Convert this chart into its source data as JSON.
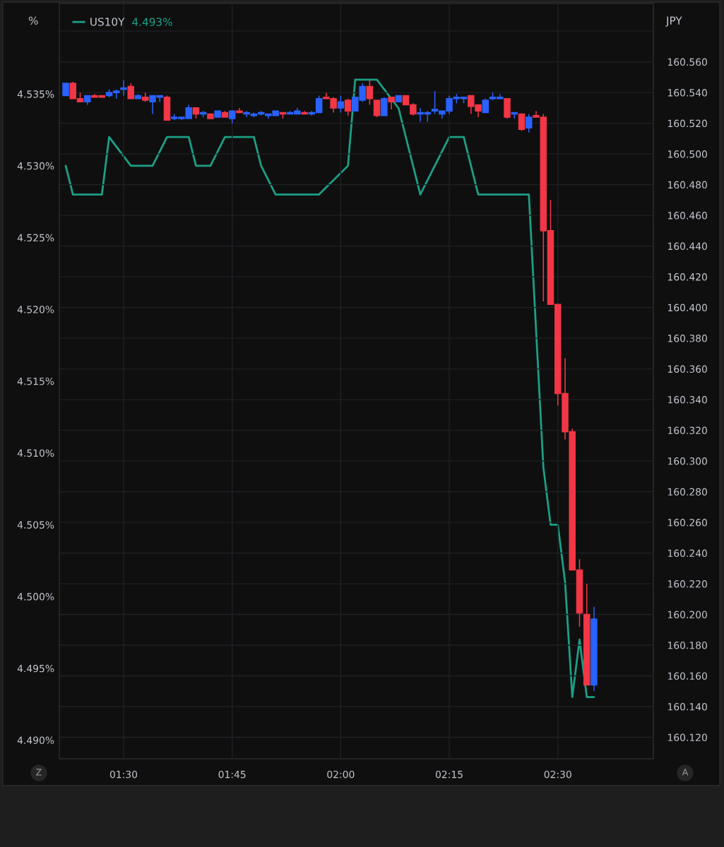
{
  "chart_data": {
    "type": "candlestick",
    "ylabel": "JPY",
    "y2label": "%",
    "annotations": [
      "4.493%",
      "Z",
      "A"
    ],
    "xlim": [
      1.352,
      2.72
    ],
    "xticks": [
      {
        "value": 1.5,
        "label": "01:30"
      },
      {
        "value": 1.75,
        "label": "01:45"
      },
      {
        "value": 2.0,
        "label": "02:00"
      },
      {
        "value": 2.25,
        "label": "02:15"
      },
      {
        "value": 2.5,
        "label": "02:30"
      }
    ],
    "ylim": [
      160.106,
      160.598
    ],
    "yticks": [
      {
        "value": 160.12,
        "label": "160.120"
      },
      {
        "value": 160.14,
        "label": "160.140"
      },
      {
        "value": 160.16,
        "label": "160.160"
      },
      {
        "value": 160.18,
        "label": "160.180"
      },
      {
        "value": 160.2,
        "label": "160.200"
      },
      {
        "value": 160.22,
        "label": "160.220"
      },
      {
        "value": 160.24,
        "label": "160.240"
      },
      {
        "value": 160.26,
        "label": "160.260"
      },
      {
        "value": 160.28,
        "label": "160.280"
      },
      {
        "value": 160.3,
        "label": "160.300"
      },
      {
        "value": 160.32,
        "label": "160.320"
      },
      {
        "value": 160.34,
        "label": "160.340"
      },
      {
        "value": 160.36,
        "label": "160.360"
      },
      {
        "value": 160.38,
        "label": "160.380"
      },
      {
        "value": 160.4,
        "label": "160.400"
      },
      {
        "value": 160.42,
        "label": "160.420"
      },
      {
        "value": 160.44,
        "label": "160.440"
      },
      {
        "value": 160.46,
        "label": "160.460"
      },
      {
        "value": 160.48,
        "label": "160.480"
      },
      {
        "value": 160.5,
        "label": "160.500"
      },
      {
        "value": 160.52,
        "label": "160.520"
      },
      {
        "value": 160.54,
        "label": "160.540"
      },
      {
        "value": 160.56,
        "label": "160.560"
      },
      {
        "value": 160.58,
        "label": null
      }
    ],
    "y2lim": [
      4.4887,
      4.5413
    ],
    "y2ticks": [
      {
        "value": 4.49,
        "label": "4.490%"
      },
      {
        "value": 4.495,
        "label": "4.495%"
      },
      {
        "value": 4.5,
        "label": "4.500%"
      },
      {
        "value": 4.505,
        "label": "4.505%"
      },
      {
        "value": 4.51,
        "label": "4.510%"
      },
      {
        "value": 4.515,
        "label": "4.515%"
      },
      {
        "value": 4.52,
        "label": "4.520%"
      },
      {
        "value": 4.525,
        "label": "4.525%"
      },
      {
        "value": 4.53,
        "label": "4.530%"
      },
      {
        "value": 4.535,
        "label": "4.535%"
      }
    ],
    "grid": true,
    "legend": "top left",
    "series": [
      {
        "x": [
          1.3667,
          1.3833,
          1.4,
          1.4167,
          1.4333,
          1.45,
          1.4667,
          1.4833,
          1.5,
          1.5167,
          1.5333,
          1.55,
          1.5667,
          1.5833,
          1.6,
          1.6167,
          1.6333,
          1.65,
          1.6667,
          1.6833,
          1.7,
          1.7167,
          1.7333,
          1.75,
          1.7667,
          1.7833,
          1.8,
          1.8167,
          1.8333,
          1.85,
          1.8667,
          1.8833,
          1.9,
          1.9167,
          1.9333,
          1.95,
          1.9667,
          1.9833,
          2.0,
          2.0167,
          2.0333,
          2.05,
          2.0667,
          2.0833,
          2.1,
          2.1167,
          2.1333,
          2.15,
          2.1667,
          2.1833,
          2.2,
          2.2167,
          2.2333,
          2.25,
          2.2667,
          2.2833,
          2.3,
          2.3167,
          2.3333,
          2.35,
          2.3667,
          2.3833,
          2.4,
          2.4167,
          2.4333,
          2.45,
          2.4667,
          2.4833,
          2.5,
          2.5167,
          2.5333,
          2.55,
          2.5667,
          2.5833
        ],
        "ohlc": [
          [
            160.538,
            160.546,
            160.538,
            160.546
          ],
          [
            160.546,
            160.547,
            160.536,
            160.536
          ],
          [
            160.536,
            160.54,
            160.534,
            160.534
          ],
          [
            160.534,
            160.538,
            160.532,
            160.538
          ],
          [
            160.538,
            160.539,
            160.537,
            160.537
          ],
          [
            160.538,
            160.538,
            160.537,
            160.537
          ],
          [
            160.538,
            160.542,
            160.537,
            160.54
          ],
          [
            160.54,
            160.542,
            160.536,
            160.541
          ],
          [
            160.542,
            160.548,
            160.538,
            160.543
          ],
          [
            160.544,
            160.546,
            160.536,
            160.536
          ],
          [
            160.536,
            160.539,
            160.536,
            160.538
          ],
          [
            160.537,
            160.54,
            160.534,
            160.535
          ],
          [
            160.534,
            160.538,
            160.526,
            160.538
          ],
          [
            160.537,
            160.538,
            160.534,
            160.538
          ],
          [
            160.537,
            160.538,
            160.522,
            160.522
          ],
          [
            160.523,
            160.526,
            160.522,
            160.524
          ],
          [
            160.523,
            160.524,
            160.522,
            160.524
          ],
          [
            160.523,
            160.532,
            160.523,
            160.53
          ],
          [
            160.53,
            160.53,
            160.523,
            160.526
          ],
          [
            160.526,
            160.528,
            160.524,
            160.527
          ],
          [
            160.526,
            160.526,
            160.523,
            160.523
          ],
          [
            160.524,
            160.528,
            160.524,
            160.528
          ],
          [
            160.527,
            160.528,
            160.524,
            160.524
          ],
          [
            160.523,
            160.528,
            160.52,
            160.528
          ],
          [
            160.528,
            160.53,
            160.527,
            160.527
          ],
          [
            160.526,
            160.528,
            160.524,
            160.527
          ],
          [
            160.525,
            160.527,
            160.524,
            160.526
          ],
          [
            160.526,
            160.528,
            160.525,
            160.527
          ],
          [
            160.525,
            160.526,
            160.523,
            160.526
          ],
          [
            160.525,
            160.528,
            160.525,
            160.528
          ],
          [
            160.527,
            160.527,
            160.523,
            160.526
          ],
          [
            160.526,
            160.528,
            160.526,
            160.527
          ],
          [
            160.526,
            160.53,
            160.526,
            160.528
          ],
          [
            160.527,
            160.528,
            160.526,
            160.526
          ],
          [
            160.526,
            160.528,
            160.525,
            160.527
          ],
          [
            160.527,
            160.538,
            160.527,
            160.536
          ],
          [
            160.537,
            160.54,
            160.536,
            160.536
          ],
          [
            160.536,
            160.537,
            160.527,
            160.53
          ],
          [
            160.53,
            160.538,
            160.527,
            160.534
          ],
          [
            160.535,
            160.536,
            160.525,
            160.528
          ],
          [
            160.528,
            160.537,
            160.528,
            160.537
          ],
          [
            160.535,
            160.546,
            160.534,
            160.544
          ],
          [
            160.544,
            160.548,
            160.532,
            160.536
          ],
          [
            160.535,
            160.535,
            160.524,
            160.525
          ],
          [
            160.525,
            160.537,
            160.525,
            160.536
          ],
          [
            160.537,
            160.537,
            160.529,
            160.534
          ],
          [
            160.534,
            160.538,
            160.534,
            160.538
          ],
          [
            160.538,
            160.538,
            160.532,
            160.532
          ],
          [
            160.532,
            160.533,
            160.525,
            160.526
          ],
          [
            160.526,
            160.53,
            160.521,
            160.527
          ],
          [
            160.526,
            160.528,
            160.521,
            160.527
          ],
          [
            160.528,
            160.541,
            160.526,
            160.529
          ],
          [
            160.526,
            160.528,
            160.523,
            160.528
          ],
          [
            160.528,
            160.538,
            160.526,
            160.536
          ],
          [
            160.536,
            160.539,
            160.533,
            160.537
          ],
          [
            160.536,
            160.537,
            160.533,
            160.537
          ],
          [
            160.538,
            160.538,
            160.526,
            160.531
          ],
          [
            160.532,
            160.532,
            160.524,
            160.528
          ],
          [
            160.527,
            160.536,
            160.527,
            160.535
          ],
          [
            160.536,
            160.54,
            160.535,
            160.537
          ],
          [
            160.536,
            160.539,
            160.536,
            160.537
          ],
          [
            160.536,
            160.536,
            160.523,
            160.524
          ],
          [
            160.526,
            160.527,
            160.523,
            160.527
          ],
          [
            160.526,
            160.526,
            160.515,
            160.516
          ],
          [
            160.517,
            160.526,
            160.514,
            160.524
          ],
          [
            160.525,
            160.528,
            160.524,
            160.524
          ],
          [
            160.524,
            160.526,
            160.404,
            160.45
          ],
          [
            160.45,
            160.47,
            160.402,
            160.402
          ],
          [
            160.402,
            160.402,
            160.336,
            160.344
          ],
          [
            160.344,
            160.367,
            160.314,
            160.319
          ],
          [
            160.319,
            160.321,
            160.229,
            160.229
          ],
          [
            160.229,
            160.236,
            160.192,
            160.201
          ],
          [
            160.2,
            160.22,
            160.154,
            160.154
          ],
          [
            160.154,
            160.205,
            160.15,
            160.197
          ]
        ],
        "colors": [
          "#2962ff",
          "#f23645",
          "#f23645",
          "#2962ff",
          "#f23645",
          "#f23645",
          "#2962ff",
          "#2962ff",
          "#2962ff",
          "#f23645",
          "#2962ff",
          "#f23645",
          "#2962ff",
          "#2962ff",
          "#f23645",
          "#2962ff",
          "#2962ff",
          "#2962ff",
          "#f23645",
          "#2962ff",
          "#f23645",
          "#2962ff",
          "#f23645",
          "#2962ff",
          "#f23645",
          "#2962ff",
          "#2962ff",
          "#2962ff",
          "#2962ff",
          "#2962ff",
          "#f23645",
          "#2962ff",
          "#2962ff",
          "#f23645",
          "#2962ff",
          "#2962ff",
          "#f23645",
          "#f23645",
          "#2962ff",
          "#f23645",
          "#2962ff",
          "#2962ff",
          "#f23645",
          "#f23645",
          "#2962ff",
          "#f23645",
          "#2962ff",
          "#f23645",
          "#f23645",
          "#2962ff",
          "#2962ff",
          "#2962ff",
          "#2962ff",
          "#2962ff",
          "#2962ff",
          "#2962ff",
          "#f23645",
          "#f23645",
          "#2962ff",
          "#2962ff",
          "#2962ff",
          "#f23645",
          "#2962ff",
          "#f23645",
          "#2962ff",
          "#f23645",
          "#f23645",
          "#f23645",
          "#f23645",
          "#f23645",
          "#f23645",
          "#f23645",
          "#f23645",
          "#2962ff"
        ]
      },
      {
        "type": "line",
        "name": "US10Y",
        "axis": "y2",
        "color": "#1c9f85",
        "line_style": "solid",
        "x": [
          1.3667,
          1.3833,
          1.45,
          1.4667,
          1.5167,
          1.5667,
          1.6,
          1.65,
          1.6667,
          1.7,
          1.7333,
          1.8,
          1.8167,
          1.85,
          1.95,
          2.0167,
          2.0333,
          2.0833,
          2.1333,
          2.1833,
          2.25,
          2.2833,
          2.3167,
          2.4333,
          2.4667,
          2.4833,
          2.5,
          2.5167,
          2.5333,
          2.55,
          2.5667,
          2.5833
        ],
        "values": [
          4.53,
          4.528,
          4.528,
          4.532,
          4.53,
          4.53,
          4.532,
          4.532,
          4.53,
          4.53,
          4.532,
          4.532,
          4.53,
          4.528,
          4.528,
          4.53,
          4.536,
          4.536,
          4.534,
          4.528,
          4.532,
          4.532,
          4.528,
          4.528,
          4.509,
          4.505,
          4.505,
          4.501,
          4.493,
          4.497,
          4.493,
          4.493
        ]
      }
    ]
  }
}
